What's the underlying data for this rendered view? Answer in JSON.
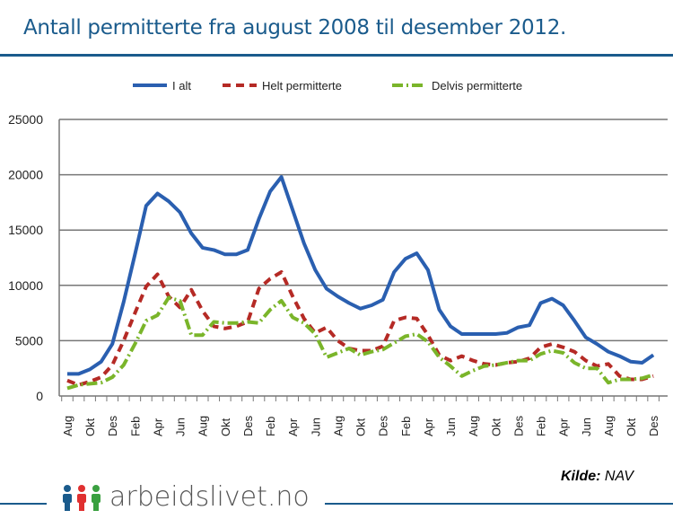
{
  "chart_data": {
    "type": "line",
    "title": "Antall permitterte fra august 2008 til desember 2012.",
    "xlabel": "",
    "ylabel": "",
    "ylim": [
      0,
      25000
    ],
    "yticks": [
      "0",
      "5000",
      "10000",
      "15000",
      "20000",
      "25000"
    ],
    "xtick_labels": [
      "Aug",
      "Okt",
      "Des",
      "Feb",
      "Apr",
      "Jun",
      "Aug",
      "Okt",
      "Des",
      "Feb",
      "Apr",
      "Jun",
      "Aug",
      "Okt",
      "Des",
      "Feb",
      "Apr",
      "Jun",
      "Aug",
      "Okt",
      "Des",
      "Feb",
      "Apr",
      "Jun",
      "Aug",
      "Okt",
      "Des"
    ],
    "x_start": "2008-08",
    "x_end": "2012-12",
    "grid": true,
    "legend": "top",
    "series": [
      {
        "name": "I alt",
        "color": "#2a5fb0",
        "style": "solid",
        "values": [
          2000,
          2000,
          2400,
          3100,
          4700,
          8500,
          12800,
          17200,
          18300,
          17600,
          16600,
          14700,
          13400,
          13200,
          12800,
          12800,
          13200,
          16000,
          18500,
          19800,
          16800,
          13800,
          11400,
          9700,
          9000,
          8400,
          7900,
          8200,
          8700,
          11200,
          12400,
          12900,
          11400,
          7800,
          6300,
          5600,
          5600,
          5600,
          5600,
          5700,
          6200,
          6400,
          8400,
          8800,
          8200,
          6800,
          5300,
          4700,
          4000,
          3600,
          3100,
          3000,
          3700
        ]
      },
      {
        "name": "Helt permitterte",
        "color": "#b52a25",
        "style": "dashed",
        "values": [
          1400,
          1000,
          1300,
          1700,
          2800,
          5000,
          7500,
          9900,
          11000,
          9000,
          8000,
          9600,
          7700,
          6300,
          6100,
          6300,
          6700,
          9700,
          10600,
          11200,
          9000,
          7000,
          5700,
          6200,
          5000,
          4300,
          4100,
          4100,
          4500,
          6800,
          7100,
          7000,
          5500,
          3700,
          3200,
          3600,
          3200,
          2900,
          2800,
          3000,
          3100,
          3400,
          4400,
          4700,
          4400,
          4000,
          3200,
          2700,
          2900,
          1800,
          1500,
          1500,
          1800
        ]
      },
      {
        "name": "Delvis permitterte",
        "color": "#7ab52a",
        "style": "dashdot",
        "values": [
          700,
          1000,
          1100,
          1200,
          1700,
          2800,
          4700,
          6800,
          7300,
          8900,
          8600,
          5500,
          5500,
          6700,
          6600,
          6600,
          6700,
          6600,
          7800,
          8600,
          7100,
          6600,
          5600,
          3500,
          3900,
          4300,
          3700,
          4000,
          4200,
          4800,
          5400,
          5600,
          4900,
          3500,
          2700,
          1800,
          2300,
          2700,
          2800,
          3000,
          3200,
          3200,
          3800,
          4100,
          3900,
          3000,
          2500,
          2500,
          1200,
          1500,
          1500,
          1600,
          1900
        ]
      }
    ]
  },
  "source": {
    "label": "Kilde:",
    "value": "NAV"
  },
  "brand": "arbeidslivet.no"
}
